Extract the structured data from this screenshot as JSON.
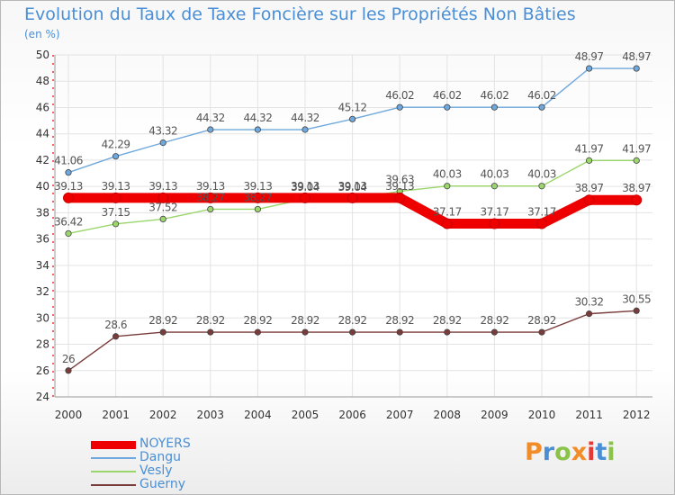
{
  "title": "Evolution du Taux de Taxe Foncière sur les Propriétés Non Bâties",
  "subtitle": "(en %)",
  "logo": {
    "text": "Proxiti",
    "letters": [
      "P",
      "r",
      "o",
      "x",
      "i",
      "t",
      "i"
    ],
    "colors": [
      "#f28c28",
      "#4a8fd6",
      "#8bc34a",
      "#f28c28",
      "#e53935",
      "#4a8fd6",
      "#8bc34a"
    ]
  },
  "chart_data": {
    "type": "line",
    "title": "Evolution du Taux de Taxe Foncière sur les Propriétés Non Bâties",
    "ylabel": "(en %)",
    "xlabel": "",
    "x": [
      "2000",
      "2001",
      "2002",
      "2003",
      "2004",
      "2005",
      "2006",
      "2007",
      "2008",
      "2009",
      "2010",
      "2011",
      "2012"
    ],
    "ylim": [
      24,
      50
    ],
    "yticks": [
      "24",
      "26",
      "28",
      "30",
      "32",
      "34",
      "36",
      "38",
      "40",
      "42",
      "44",
      "46",
      "48",
      "50"
    ],
    "grid": true,
    "legend_position": "bottom-left",
    "series": [
      {
        "name": "NOYERS",
        "color": "#ee0000",
        "values": [
          39.13,
          39.13,
          39.13,
          39.13,
          39.13,
          39.13,
          39.13,
          39.13,
          37.17,
          37.17,
          37.17,
          38.97,
          38.97
        ],
        "labels": [
          "39.13",
          "39.13",
          "39.13",
          "39.13",
          "39.13",
          "39.13",
          "39.13",
          "39.13",
          "37.17",
          "37.17",
          "37.17",
          "38.97",
          "38.97"
        ]
      },
      {
        "name": "Dangu",
        "color": "#6fa8dc",
        "values": [
          41.06,
          42.29,
          43.32,
          44.32,
          44.32,
          44.32,
          45.12,
          46.02,
          46.02,
          46.02,
          46.02,
          48.97,
          48.97
        ],
        "labels": [
          "41.06",
          "42.29",
          "43.32",
          "44.32",
          "44.32",
          "44.32",
          "45.12",
          "46.02",
          "46.02",
          "46.02",
          "46.02",
          "48.97",
          "48.97"
        ]
      },
      {
        "name": "Vesly",
        "color": "#9ad66b",
        "values": [
          36.42,
          37.15,
          37.52,
          38.27,
          38.27,
          39.04,
          39.04,
          39.63,
          40.03,
          40.03,
          40.03,
          41.97,
          41.97
        ],
        "labels": [
          "36.42",
          "37.15",
          "37.52",
          "38.27",
          "38.27",
          "39.04",
          "39.04",
          "39.63",
          "40.03",
          "40.03",
          "40.03",
          "41.97",
          "41.97"
        ]
      },
      {
        "name": "Guerny",
        "color": "#7a3b3b",
        "values": [
          26,
          28.6,
          28.92,
          28.92,
          28.92,
          28.92,
          28.92,
          28.92,
          28.92,
          28.92,
          28.92,
          30.32,
          30.55
        ],
        "labels": [
          "26",
          "28.6",
          "28.92",
          "28.92",
          "28.92",
          "28.92",
          "28.92",
          "28.92",
          "28.92",
          "28.92",
          "28.92",
          "30.32",
          "30.55"
        ]
      }
    ]
  }
}
